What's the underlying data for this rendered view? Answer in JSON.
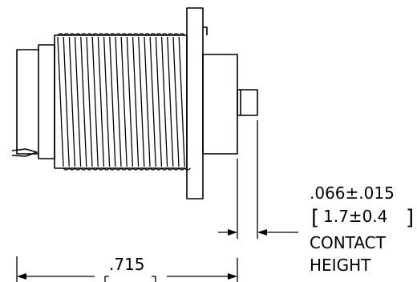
{
  "drawing": {
    "contact_dimension": {
      "inch": ".066±.015",
      "metric": "1.7±0.4",
      "label_line1": "CONTACT",
      "label_line2": "HEIGHT"
    },
    "length_dimension": {
      "inch": ".715"
    }
  }
}
